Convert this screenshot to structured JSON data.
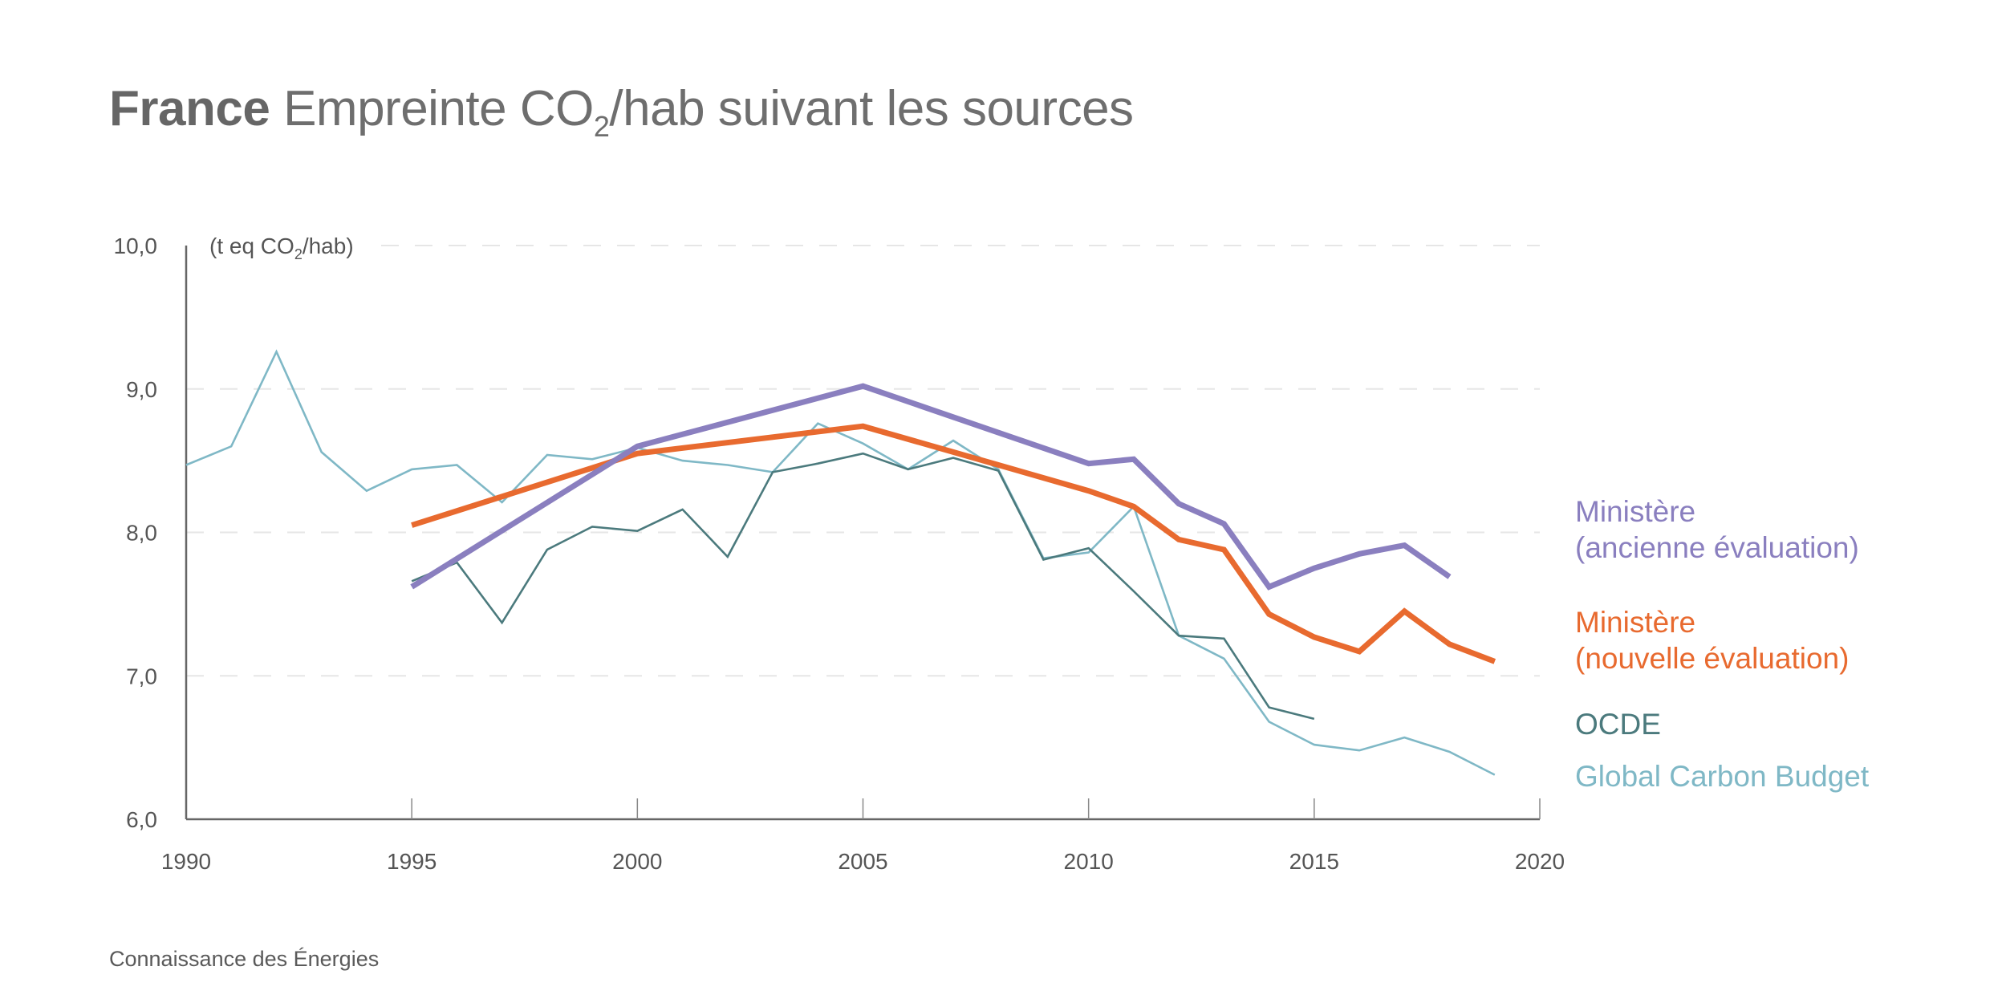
{
  "title": {
    "bold": "France",
    "pre": "Empreinte CO",
    "sub": "2",
    "post": "/hab suivant les sources"
  },
  "source": "Connaissance des Énergies",
  "chart_data": {
    "type": "line",
    "title": "France Empreinte CO2/hab suivant les sources",
    "ylabel": {
      "pre": "(t eq CO",
      "sub": "2",
      "post": "/hab)"
    },
    "xlabel": "",
    "xlim": [
      1990,
      2020
    ],
    "ylim": [
      6.0,
      10.0
    ],
    "x_ticks": [
      "1990",
      "1995",
      "2000",
      "2005",
      "2010",
      "2015",
      "2020"
    ],
    "x_tick_values": [
      1990,
      1995,
      2000,
      2005,
      2010,
      2015,
      2020
    ],
    "y_ticks": [
      "6,0",
      "7,0",
      "8,0",
      "9,0",
      "10,0"
    ],
    "y_tick_values": [
      6,
      7,
      8,
      9,
      10
    ],
    "grid": "horizontal dashed",
    "legend_placement": "right",
    "series": [
      {
        "name": "Ministère (ancienne évaluation)",
        "legend_lines": [
          "Ministère",
          "(ancienne évaluation)"
        ],
        "color": "#8a7fbf",
        "width": "thick",
        "x": [
          1995,
          2000,
          2005,
          2010,
          2011,
          2012,
          2013,
          2014,
          2015,
          2016,
          2017,
          2018
        ],
        "y": [
          7.62,
          8.6,
          9.02,
          8.48,
          8.51,
          8.2,
          8.06,
          7.62,
          7.75,
          7.85,
          7.91,
          7.69
        ]
      },
      {
        "name": "Ministère (nouvelle évaluation)",
        "legend_lines": [
          "Ministère",
          "(nouvelle évaluation)"
        ],
        "color": "#e86a2f",
        "width": "thick",
        "x": [
          1995,
          2000,
          2005,
          2010,
          2011,
          2012,
          2013,
          2014,
          2015,
          2016,
          2017,
          2018,
          2019
        ],
        "y": [
          8.05,
          8.55,
          8.74,
          8.29,
          8.18,
          7.95,
          7.88,
          7.43,
          7.27,
          7.17,
          7.45,
          7.22,
          7.1
        ]
      },
      {
        "name": "OCDE",
        "legend_lines": [
          "OCDE"
        ],
        "color": "#4b7a7d",
        "width": "thin",
        "x": [
          1995,
          1996,
          1997,
          1998,
          1999,
          2000,
          2001,
          2002,
          2003,
          2004,
          2005,
          2006,
          2007,
          2008,
          2009,
          2010,
          2011,
          2012,
          2013,
          2014,
          2015
        ],
        "y": [
          7.66,
          7.79,
          7.37,
          7.88,
          8.04,
          8.01,
          8.16,
          7.83,
          8.42,
          8.48,
          8.55,
          8.44,
          8.52,
          8.43,
          7.81,
          7.89,
          7.59,
          7.28,
          7.26,
          6.78,
          6.7
        ]
      },
      {
        "name": "Global Carbon Budget",
        "legend_lines": [
          "Global Carbon Budget"
        ],
        "color": "#7fb8c6",
        "width": "thin",
        "x": [
          1990,
          1991,
          1992,
          1993,
          1994,
          1995,
          1996,
          1997,
          1998,
          1999,
          2000,
          2001,
          2002,
          2003,
          2004,
          2005,
          2006,
          2007,
          2008,
          2009,
          2010,
          2011,
          2012,
          2013,
          2014,
          2015,
          2016,
          2017,
          2018,
          2019
        ],
        "y": [
          8.47,
          8.6,
          9.26,
          8.56,
          8.29,
          8.44,
          8.47,
          8.21,
          8.54,
          8.51,
          8.59,
          8.5,
          8.47,
          8.42,
          8.76,
          8.62,
          8.44,
          8.64,
          8.44,
          7.82,
          7.86,
          8.18,
          7.28,
          7.12,
          6.68,
          6.52,
          6.48,
          6.57,
          6.47,
          6.31
        ]
      }
    ]
  }
}
